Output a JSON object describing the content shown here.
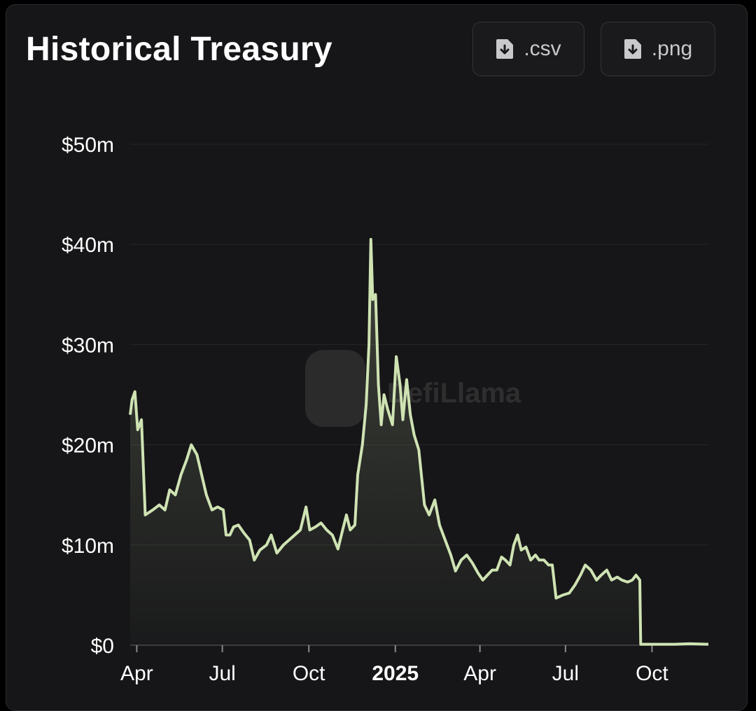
{
  "header": {
    "title": "Historical Treasury",
    "csv_label": ".csv",
    "png_label": ".png",
    "download_icon": "file-download-icon"
  },
  "watermark": {
    "text": "DefiLlama"
  },
  "colors": {
    "background": "#161618",
    "line": "#cfe3b3",
    "grid": "#262629",
    "text": "#ffffff"
  },
  "chart_data": {
    "type": "area",
    "title": "Historical Treasury",
    "y_tick_labels": [
      "$0",
      "$10m",
      "$20m",
      "$30m",
      "$40m",
      "$50m"
    ],
    "y_ticks": [
      0,
      10,
      20,
      30,
      40,
      50
    ],
    "x_tick_labels": [
      "Apr",
      "Jul",
      "Oct",
      "2025",
      "Apr",
      "Jul",
      "Oct"
    ],
    "x_ticks": [
      "2024-04-01",
      "2024-07-01",
      "2024-10-01",
      "2025-01-01",
      "2025-04-01",
      "2025-07-01",
      "2025-10-01"
    ],
    "x_range": [
      "2024-03-25",
      "2025-11-30"
    ],
    "ylim": [
      0,
      50
    ],
    "grid": true,
    "series": [
      {
        "points": [
          [
            "2024-03-25",
            23.0
          ],
          [
            "2024-03-27",
            24.5
          ],
          [
            "2024-03-30",
            25.3
          ],
          [
            "2024-04-02",
            21.5
          ],
          [
            "2024-04-06",
            22.5
          ],
          [
            "2024-04-10",
            13.0
          ],
          [
            "2024-04-18",
            13.5
          ],
          [
            "2024-04-25",
            14.0
          ],
          [
            "2024-05-01",
            13.5
          ],
          [
            "2024-05-06",
            15.5
          ],
          [
            "2024-05-12",
            15.0
          ],
          [
            "2024-05-18",
            17.0
          ],
          [
            "2024-05-24",
            18.5
          ],
          [
            "2024-05-29",
            20.0
          ],
          [
            "2024-06-04",
            19.0
          ],
          [
            "2024-06-09",
            17.0
          ],
          [
            "2024-06-14",
            15.0
          ],
          [
            "2024-06-20",
            13.5
          ],
          [
            "2024-06-26",
            13.8
          ],
          [
            "2024-07-02",
            13.5
          ],
          [
            "2024-07-05",
            11.0
          ],
          [
            "2024-07-09",
            11.0
          ],
          [
            "2024-07-13",
            11.8
          ],
          [
            "2024-07-18",
            12.0
          ],
          [
            "2024-07-24",
            11.2
          ],
          [
            "2024-07-30",
            10.5
          ],
          [
            "2024-08-04",
            8.5
          ],
          [
            "2024-08-10",
            9.5
          ],
          [
            "2024-08-17",
            10.0
          ],
          [
            "2024-08-22",
            11.0
          ],
          [
            "2024-08-28",
            9.2
          ],
          [
            "2024-09-04",
            10.0
          ],
          [
            "2024-09-10",
            10.5
          ],
          [
            "2024-09-16",
            11.0
          ],
          [
            "2024-09-22",
            11.5
          ],
          [
            "2024-09-28",
            13.8
          ],
          [
            "2024-10-02",
            11.5
          ],
          [
            "2024-10-08",
            11.8
          ],
          [
            "2024-10-14",
            12.2
          ],
          [
            "2024-10-20",
            11.5
          ],
          [
            "2024-10-26",
            11.0
          ],
          [
            "2024-11-01",
            9.6
          ],
          [
            "2024-11-06",
            11.5
          ],
          [
            "2024-11-10",
            13.0
          ],
          [
            "2024-11-14",
            11.5
          ],
          [
            "2024-11-19",
            12.0
          ],
          [
            "2024-11-22",
            17.0
          ],
          [
            "2024-11-27",
            20.0
          ],
          [
            "2024-12-01",
            24.0
          ],
          [
            "2024-12-04",
            30.0
          ],
          [
            "2024-12-06",
            40.5
          ],
          [
            "2024-12-08",
            34.5
          ],
          [
            "2024-12-11",
            35.0
          ],
          [
            "2024-12-14",
            26.0
          ],
          [
            "2024-12-17",
            22.0
          ],
          [
            "2024-12-20",
            25.0
          ],
          [
            "2024-12-24",
            23.5
          ],
          [
            "2024-12-29",
            22.0
          ],
          [
            "2025-01-02",
            28.8
          ],
          [
            "2025-01-06",
            26.0
          ],
          [
            "2025-01-09",
            22.5
          ],
          [
            "2025-01-13",
            26.5
          ],
          [
            "2025-01-17",
            23.0
          ],
          [
            "2025-01-21",
            21.0
          ],
          [
            "2025-01-26",
            19.5
          ],
          [
            "2025-02-01",
            14.0
          ],
          [
            "2025-02-06",
            13.0
          ],
          [
            "2025-02-12",
            14.5
          ],
          [
            "2025-02-17",
            12.0
          ],
          [
            "2025-02-23",
            10.5
          ],
          [
            "2025-03-01",
            9.0
          ],
          [
            "2025-03-06",
            7.4
          ],
          [
            "2025-03-12",
            8.5
          ],
          [
            "2025-03-18",
            9.0
          ],
          [
            "2025-03-24",
            8.2
          ],
          [
            "2025-03-30",
            7.2
          ],
          [
            "2025-04-04",
            6.5
          ],
          [
            "2025-04-09",
            7.0
          ],
          [
            "2025-04-14",
            7.5
          ],
          [
            "2025-04-19",
            7.5
          ],
          [
            "2025-04-24",
            8.8
          ],
          [
            "2025-04-28",
            8.5
          ],
          [
            "2025-05-03",
            8.0
          ],
          [
            "2025-05-07",
            10.0
          ],
          [
            "2025-05-11",
            11.0
          ],
          [
            "2025-05-15",
            9.5
          ],
          [
            "2025-05-20",
            9.8
          ],
          [
            "2025-05-25",
            8.5
          ],
          [
            "2025-05-30",
            9.0
          ],
          [
            "2025-06-03",
            8.5
          ],
          [
            "2025-06-08",
            8.5
          ],
          [
            "2025-06-13",
            8.0
          ],
          [
            "2025-06-17",
            8.0
          ],
          [
            "2025-06-21",
            4.7
          ],
          [
            "2025-06-28",
            5.0
          ],
          [
            "2025-07-05",
            5.2
          ],
          [
            "2025-07-11",
            6.0
          ],
          [
            "2025-07-17",
            7.0
          ],
          [
            "2025-07-22",
            8.0
          ],
          [
            "2025-07-28",
            7.5
          ],
          [
            "2025-08-03",
            6.5
          ],
          [
            "2025-08-08",
            7.0
          ],
          [
            "2025-08-14",
            7.5
          ],
          [
            "2025-08-19",
            6.5
          ],
          [
            "2025-08-25",
            6.8
          ],
          [
            "2025-08-30",
            6.5
          ],
          [
            "2025-09-05",
            6.3
          ],
          [
            "2025-09-10",
            6.5
          ],
          [
            "2025-09-14",
            7.0
          ],
          [
            "2025-09-18",
            6.5
          ],
          [
            "2025-09-19",
            0.1
          ],
          [
            "2025-10-05",
            0.1
          ],
          [
            "2025-10-25",
            0.1
          ],
          [
            "2025-11-10",
            0.15
          ],
          [
            "2025-11-30",
            0.1
          ]
        ]
      }
    ]
  }
}
